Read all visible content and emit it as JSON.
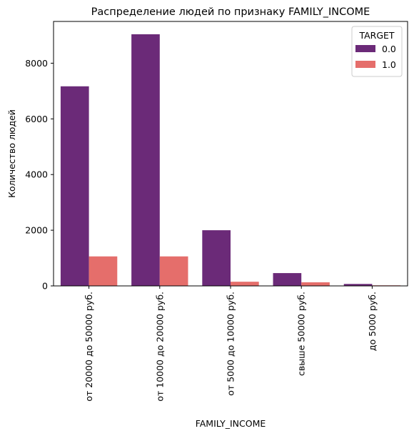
{
  "chart_data": {
    "type": "bar",
    "title": "Распределение людей по признаку FAMILY_INCOME",
    "xlabel": "FAMILY_INCOME",
    "ylabel": "Количество людей",
    "categories": [
      "от 20000 до 50000 руб.",
      "от 10000 до 20000 руб.",
      "от 5000 до 10000 руб.",
      "свыше 50000 руб.",
      "до 5000 руб."
    ],
    "series": [
      {
        "name": "0.0",
        "color": "#6b2a78",
        "values": [
          7170,
          9040,
          2000,
          460,
          70
        ]
      },
      {
        "name": "1.0",
        "color": "#e56e6b",
        "values": [
          1060,
          1060,
          150,
          130,
          20
        ]
      }
    ],
    "ylim": [
      0,
      9500
    ],
    "yticks": [
      0,
      2000,
      4000,
      6000,
      8000
    ],
    "grid": false,
    "legend": {
      "title": "TARGET",
      "placement": "top-right"
    }
  }
}
